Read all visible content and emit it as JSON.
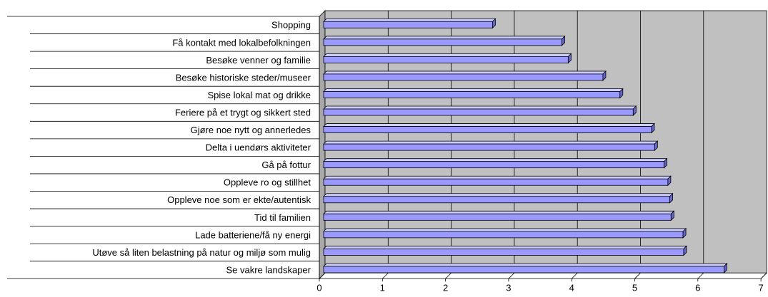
{
  "chart_data": {
    "type": "bar",
    "orientation": "horizontal",
    "style": "3d",
    "categories": [
      "Shopping",
      "Få kontakt med lokalbefolkningen",
      "Besøke venner og familie",
      "Besøke historiske steder/museer",
      "Spise lokal mat og drikke",
      "Feriere på et trygt og sikkert sted",
      "Gjøre noe nytt og annerledes",
      "Delta i uendørs aktiviteter",
      "Gå på fottur",
      "Oppleve ro og stillhet",
      "Oppleve noe som er ekte/autentisk",
      "Tid til familien",
      "Lade batteriene/få ny energi",
      "Utøve så liten belastning på natur og miljø som mulig",
      "Se vakre landskaper"
    ],
    "values": [
      2.7,
      3.8,
      3.9,
      4.45,
      4.72,
      4.93,
      5.22,
      5.27,
      5.42,
      5.48,
      5.51,
      5.53,
      5.72,
      5.73,
      6.37
    ],
    "xlim": [
      0,
      7
    ],
    "xticks": [
      "0",
      "1",
      "2",
      "3",
      "4",
      "5",
      "6",
      "7"
    ],
    "grid": true,
    "legend": "none",
    "colors": {
      "bar_face": "#9999ff",
      "bar_top": "#ccccff",
      "bar_end": "#6666cc",
      "plot_background": "#c0c0c0",
      "gridline": "#000000",
      "label_separator": "#000000"
    }
  }
}
